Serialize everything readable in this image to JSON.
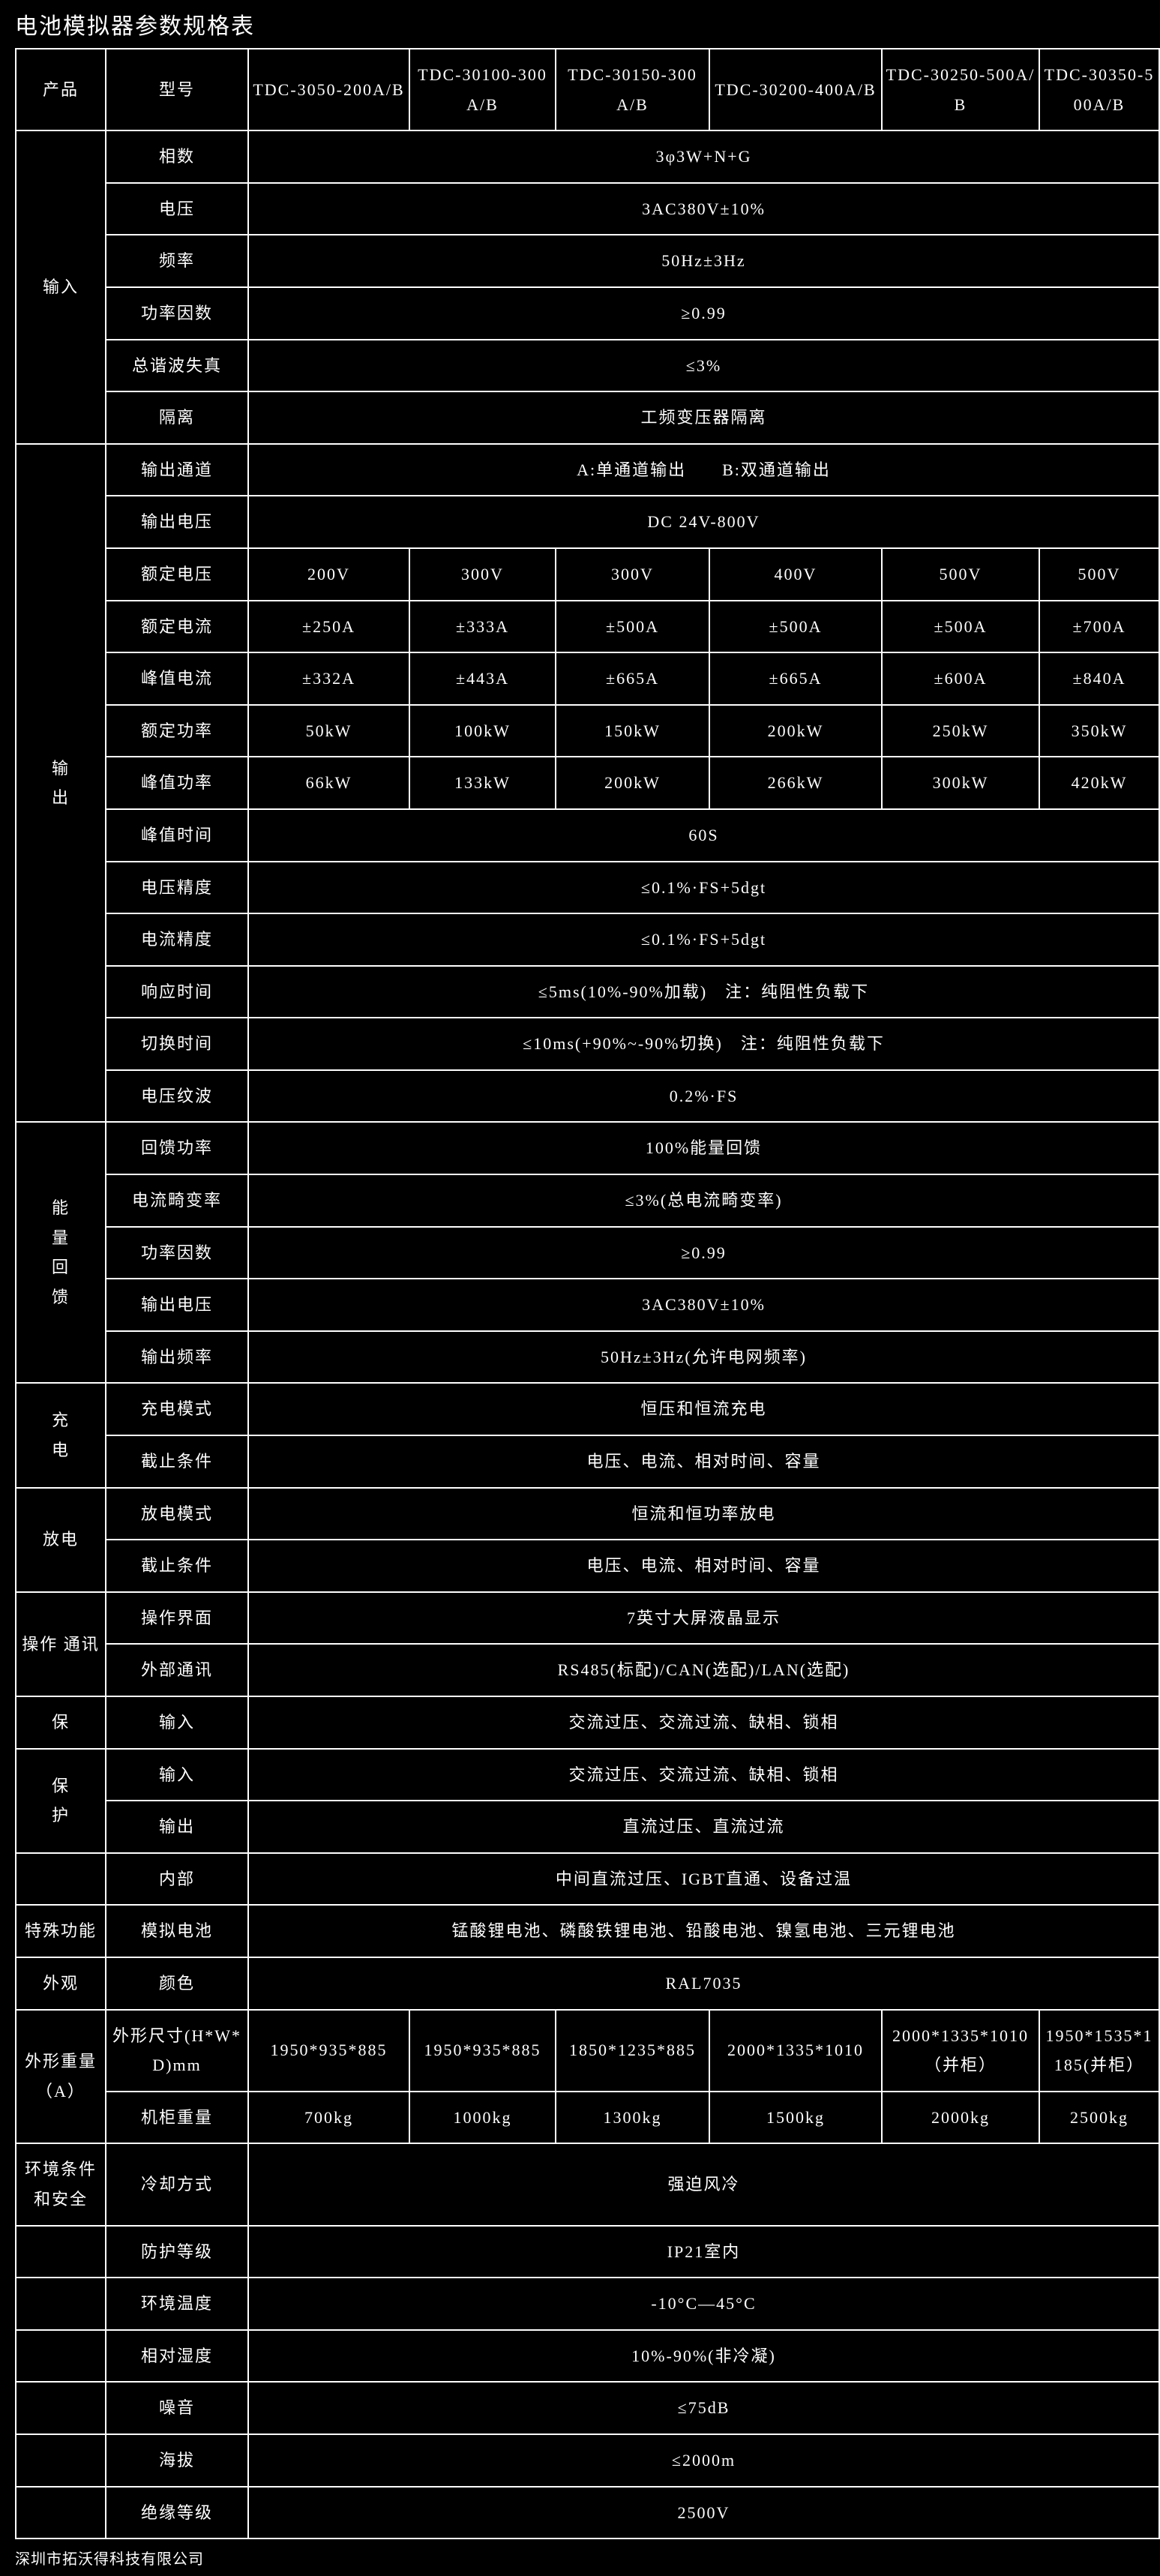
{
  "title": "电池模拟器参数规格表",
  "footer": "深圳市拓沃得科技有限公司",
  "head": {
    "product": "产品",
    "model": "型号",
    "models": [
      "TDC-3050-200A/B",
      "TDC-30100-300A/B",
      "TDC-30150-300A/B",
      "TDC-30200-400A/B",
      "TDC-30250-500A/B",
      "TDC-30350-500A/B"
    ]
  },
  "cat": {
    "input": "输入",
    "output_c1": "输",
    "output_c2": "出",
    "energy_c1": "能",
    "energy_c2": "量",
    "energy_c3": "回",
    "energy_c4": "馈",
    "charge_c1": "充",
    "charge_c2": "电",
    "discharge": "放电",
    "opcom": "操作 通讯",
    "bao": "保",
    "protect_c1": "保",
    "protect_c2": "护",
    "special": "特殊功能",
    "appearance": "外观",
    "dims": "外形重量（A）",
    "env": "环境条件和安全"
  },
  "attr": {
    "phases": "相数",
    "voltage": "电压",
    "freq": "频率",
    "pf": "功率因数",
    "thd": "总谐波失真",
    "isolation": "隔离",
    "out_ch": "输出通道",
    "out_v": "输出电压",
    "rated_v": "额定电压",
    "rated_i": "额定电流",
    "peak_i": "峰值电流",
    "rated_p": "额定功率",
    "peak_p": "峰值功率",
    "peak_t": "峰值时间",
    "v_acc": "电压精度",
    "i_acc": "电流精度",
    "resp_t": "响应时间",
    "switch_t": "切换时间",
    "v_ripple": "电压纹波",
    "regen_p": "回馈功率",
    "i_dist": "电流畸变率",
    "e_pf": "功率因数",
    "e_out_v": "输出电压",
    "e_out_f": "输出频率",
    "chg_mode": "充电模式",
    "chg_stop": "截止条件",
    "dsg_mode": "放电模式",
    "dsg_stop": "截止条件",
    "ui": "操作界面",
    "comm": "外部通讯",
    "bao_in": "输入",
    "prot_in": "输入",
    "prot_out": "输出",
    "prot_int": "内部",
    "sim_bat": "模拟电池",
    "color": "颜色",
    "dim_label": "外形尺寸(H*W*D)mm",
    "weight": "机柜重量",
    "cooling": "冷却方式",
    "ip": "防护等级",
    "amb_t": "环境温度",
    "rh": "相对湿度",
    "noise": "噪音",
    "alt": "海拔",
    "ins": "绝缘等级"
  },
  "val": {
    "phases": "3φ3W+N+G",
    "voltage": "3AC380V±10%",
    "freq": "50Hz±3Hz",
    "pf": "≥0.99",
    "thd": "≤3%",
    "isolation": "工频变压器隔离",
    "out_ch": "A:单通道输出　　B:双通道输出",
    "out_v": "DC 24V-800V",
    "rated_v": [
      "200V",
      "300V",
      "300V",
      "400V",
      "500V",
      "500V"
    ],
    "rated_i": [
      "±250A",
      "±333A",
      "±500A",
      "±500A",
      "±500A",
      "±700A"
    ],
    "peak_i": [
      "±332A",
      "±443A",
      "±665A",
      "±665A",
      "±600A",
      "±840A"
    ],
    "rated_p": [
      "50kW",
      "100kW",
      "150kW",
      "200kW",
      "250kW",
      "350kW"
    ],
    "peak_p": [
      "66kW",
      "133kW",
      "200kW",
      "266kW",
      "300kW",
      "420kW"
    ],
    "peak_t": "60S",
    "v_acc": "≤0.1%·FS+5dgt",
    "i_acc": "≤0.1%·FS+5dgt",
    "resp_t": "≤5ms(10%-90%加载)　注：纯阻性负载下",
    "switch_t": "≤10ms(+90%~-90%切换)　注：纯阻性负载下",
    "v_ripple": "0.2%·FS",
    "regen_p": "100%能量回馈",
    "i_dist": "≤3%(总电流畸变率)",
    "e_pf": "≥0.99",
    "e_out_v": "3AC380V±10%",
    "e_out_f": "50Hz±3Hz(允许电网频率)",
    "chg_mode": "恒压和恒流充电",
    "chg_stop": "电压、电流、相对时间、容量",
    "dsg_mode": "恒流和恒功率放电",
    "dsg_stop": "电压、电流、相对时间、容量",
    "ui": "7英寸大屏液晶显示",
    "comm": "RS485(标配)/CAN(选配)/LAN(选配)",
    "bao_in": "交流过压、交流过流、缺相、锁相",
    "prot_in": "交流过压、交流过流、缺相、锁相",
    "prot_out": "直流过压、直流过流",
    "prot_int": "中间直流过压、IGBT直通、设备过温",
    "sim_bat": "锰酸锂电池、磷酸铁锂电池、铅酸电池、镍氢电池、三元锂电池",
    "color": "RAL7035",
    "dims": [
      "1950*935*885",
      "1950*935*885",
      "1850*1235*885",
      "2000*1335*1010",
      "2000*1335*1010（并柜）",
      "1950*1535*1185(并柜）"
    ],
    "weight": [
      "700kg",
      "1000kg",
      "1300kg",
      "1500kg",
      "2000kg",
      "2500kg"
    ],
    "cooling": "强迫风冷",
    "ip": "IP21室内",
    "amb_t": "-10°C—45°C",
    "rh": "10%-90%(非冷凝)",
    "noise": "≤75dB",
    "alt": "≤2000m",
    "ins": "2500V"
  }
}
